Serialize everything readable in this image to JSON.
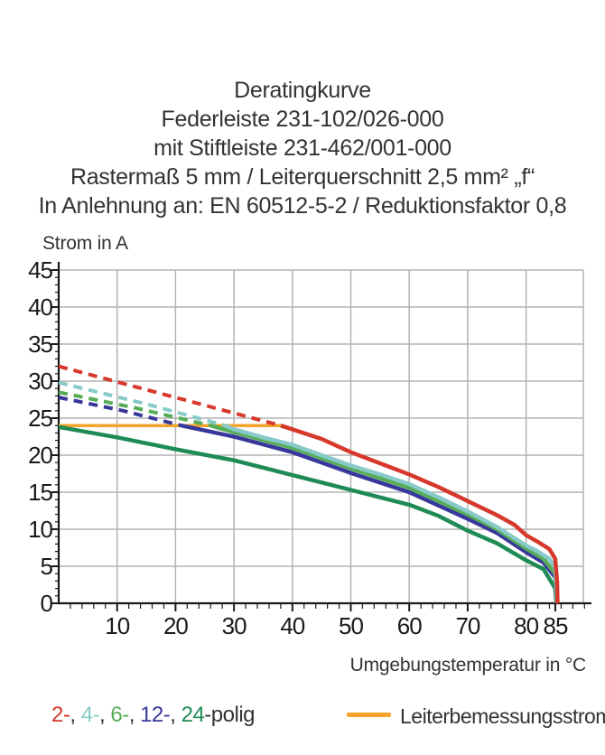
{
  "title": {
    "lines": [
      "Deratingkurve",
      "Federleiste 231-102/026-000",
      "mit Stiftleiste 231-462/001-000",
      "Rastermaß 5 mm / Leiterquerschnitt 2,5 mm² „f“",
      "In Anlehnung an: EN 60512-5-2 / Reduktionsfaktor 0,8"
    ]
  },
  "y_axis_title": "Strom in A",
  "x_axis_title": "Umgebungstemperatur in °C",
  "legend": {
    "separator": ", ",
    "suffix": "-polig",
    "poles": [
      {
        "label": "2-",
        "color": "#d6382b"
      },
      {
        "label": "4-",
        "color": "#87cac9"
      },
      {
        "label": "6-",
        "color": "#57ac57"
      },
      {
        "label": "12-",
        "color": "#38379b"
      },
      {
        "label": "24",
        "color": "#1e8b55"
      }
    ],
    "rated": {
      "label": "Leiterbemessungsstrom",
      "color": "#f4a428"
    }
  },
  "chart_data": {
    "type": "line",
    "title": "Deratingkurve",
    "xlabel": "Umgebungstemperatur in °C",
    "ylabel": "Strom in A",
    "xlim": [
      0,
      90
    ],
    "ylim": [
      0,
      45
    ],
    "x_major_ticks": [
      10,
      20,
      30,
      40,
      50,
      60,
      70,
      80,
      85
    ],
    "y_major_ticks": [
      0,
      5,
      10,
      15,
      20,
      25,
      30,
      35,
      40,
      45
    ],
    "x_minor_step": 2,
    "y_minor_step": 1,
    "grid": true,
    "grid_color": "#b3b3b3",
    "axis_color": "#1a1a1a",
    "rated_current_a": 24,
    "note": "dashed segments are values above the rated current of 24 A",
    "series": [
      {
        "name": "Leiterbemessungsstrom",
        "color": "#f4a428",
        "width": 3.5,
        "dashed": [],
        "solid": [
          [
            0,
            24
          ],
          [
            38,
            24
          ]
        ]
      },
      {
        "name": "24-polig",
        "color": "#1e8b55",
        "width": 4.5,
        "dashed": [],
        "solid": [
          [
            0,
            23.8
          ],
          [
            10,
            22.4
          ],
          [
            20,
            20.8
          ],
          [
            30,
            19.3
          ],
          [
            40,
            17.3
          ],
          [
            50,
            15.3
          ],
          [
            60,
            13.3
          ],
          [
            65,
            11.8
          ],
          [
            70,
            9.8
          ],
          [
            75,
            8.1
          ],
          [
            80,
            5.8
          ],
          [
            83,
            4.6
          ],
          [
            85,
            2.0
          ],
          [
            85.2,
            0
          ]
        ]
      },
      {
        "name": "12-polig",
        "color": "#38379b",
        "width": 4.5,
        "dashed": [
          [
            0,
            27.8
          ],
          [
            11,
            26.0
          ],
          [
            21,
            24
          ]
        ],
        "solid": [
          [
            21,
            24
          ],
          [
            30,
            22.5
          ],
          [
            40,
            20.4
          ],
          [
            50,
            17.6
          ],
          [
            60,
            15.0
          ],
          [
            70,
            11.4
          ],
          [
            75,
            9.5
          ],
          [
            80,
            6.9
          ],
          [
            83,
            5.5
          ],
          [
            85,
            3.5
          ],
          [
            85.25,
            0
          ]
        ]
      },
      {
        "name": "6-polig",
        "color": "#57ac57",
        "width": 4.5,
        "dashed": [
          [
            0,
            28.5
          ],
          [
            13,
            26.4
          ],
          [
            26,
            24
          ]
        ],
        "solid": [
          [
            26,
            24
          ],
          [
            30,
            23.1
          ],
          [
            40,
            21.0
          ],
          [
            50,
            18.2
          ],
          [
            60,
            15.6
          ],
          [
            70,
            12.0
          ],
          [
            75,
            10.0
          ],
          [
            80,
            7.4
          ],
          [
            83,
            6.0
          ],
          [
            85,
            4.0
          ],
          [
            85.3,
            0
          ]
        ]
      },
      {
        "name": "4-polig",
        "color": "#87cac9",
        "width": 4.5,
        "dashed": [
          [
            0,
            29.8
          ],
          [
            15,
            26.9
          ],
          [
            28.5,
            24
          ]
        ],
        "solid": [
          [
            28.5,
            24
          ],
          [
            30,
            23.5
          ],
          [
            35,
            22.4
          ],
          [
            40,
            21.4
          ],
          [
            45,
            20.0
          ],
          [
            50,
            18.6
          ],
          [
            55,
            17.4
          ],
          [
            60,
            16.1
          ],
          [
            65,
            14.3
          ],
          [
            70,
            12.4
          ],
          [
            75,
            10.3
          ],
          [
            80,
            7.8
          ],
          [
            82,
            7.0
          ],
          [
            84,
            6.0
          ],
          [
            85,
            4.8
          ],
          [
            85.35,
            0
          ]
        ]
      },
      {
        "name": "2-polig",
        "color": "#d6382b",
        "width": 4.5,
        "dashed": [
          [
            0,
            32
          ],
          [
            19,
            28
          ],
          [
            38,
            24
          ]
        ],
        "solid": [
          [
            38,
            24
          ],
          [
            45,
            22.2
          ],
          [
            50,
            20.4
          ],
          [
            55,
            18.9
          ],
          [
            60,
            17.4
          ],
          [
            65,
            15.7
          ],
          [
            70,
            13.8
          ],
          [
            75,
            11.9
          ],
          [
            78,
            10.6
          ],
          [
            80,
            9.2
          ],
          [
            82,
            8.3
          ],
          [
            84,
            7.3
          ],
          [
            85,
            6.0
          ],
          [
            85.3,
            3.0
          ],
          [
            85.4,
            0
          ]
        ]
      }
    ],
    "legend_entries": [
      "2-, 4-, 6-, 12-, 24-polig",
      "Leiterbemessungsstrom"
    ],
    "legend_position": "bottom"
  }
}
